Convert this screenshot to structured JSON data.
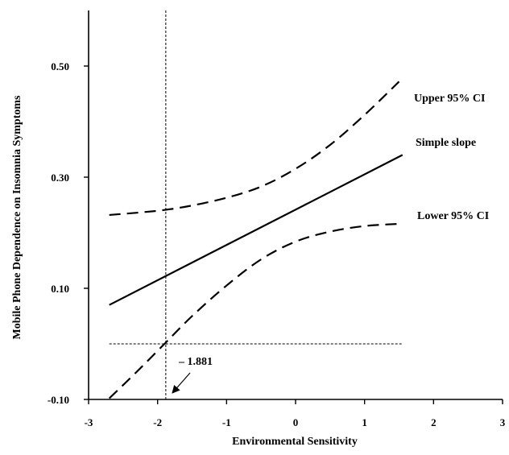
{
  "chart_data": {
    "type": "line",
    "title": "",
    "xlabel": "Environmental Sensitivity",
    "ylabel": "Mobile Phone Dependence on Insomnia Symptoms",
    "xlim": [
      -3,
      3
    ],
    "ylim": [
      -0.1,
      0.6
    ],
    "x_ticks": [
      "-3",
      "-2",
      "-1",
      "0",
      "1",
      "2",
      "3"
    ],
    "y_ticks": [
      "-0.10",
      "0.10",
      "0.30",
      "0.50"
    ],
    "grid": false,
    "series": [
      {
        "name": "Upper 95% CI",
        "style": "dashed",
        "x": [
          -2.7,
          -2.3,
          -1.9,
          -1.5,
          -1.0,
          -0.5,
          0.0,
          0.5,
          1.0,
          1.5
        ],
        "y": [
          0.232,
          0.236,
          0.241,
          0.249,
          0.263,
          0.283,
          0.315,
          0.358,
          0.412,
          0.472
        ]
      },
      {
        "name": "Simple slope",
        "style": "solid",
        "x": [
          -2.7,
          1.55
        ],
        "y": [
          0.07,
          0.34
        ]
      },
      {
        "name": "Lower 95% CI",
        "style": "dashed",
        "x": [
          -2.7,
          -2.3,
          -1.9,
          -1.5,
          -1.0,
          -0.5,
          0.0,
          0.5,
          1.0,
          1.5
        ],
        "y": [
          -0.098,
          -0.05,
          0.0,
          0.05,
          0.105,
          0.152,
          0.184,
          0.202,
          0.212,
          0.216
        ]
      }
    ],
    "reference_lines": [
      {
        "orientation": "vertical",
        "x": -1.881
      },
      {
        "orientation": "horizontal",
        "y": 0.0,
        "x_range": [
          -2.7,
          1.55
        ]
      }
    ],
    "annotations": [
      {
        "text": "– 1.881",
        "points_to": {
          "x": -1.881,
          "y": -0.1
        }
      },
      {
        "text": "Upper 95% CI"
      },
      {
        "text": "Simple slope"
      },
      {
        "text": "Lower 95% CI"
      }
    ]
  }
}
